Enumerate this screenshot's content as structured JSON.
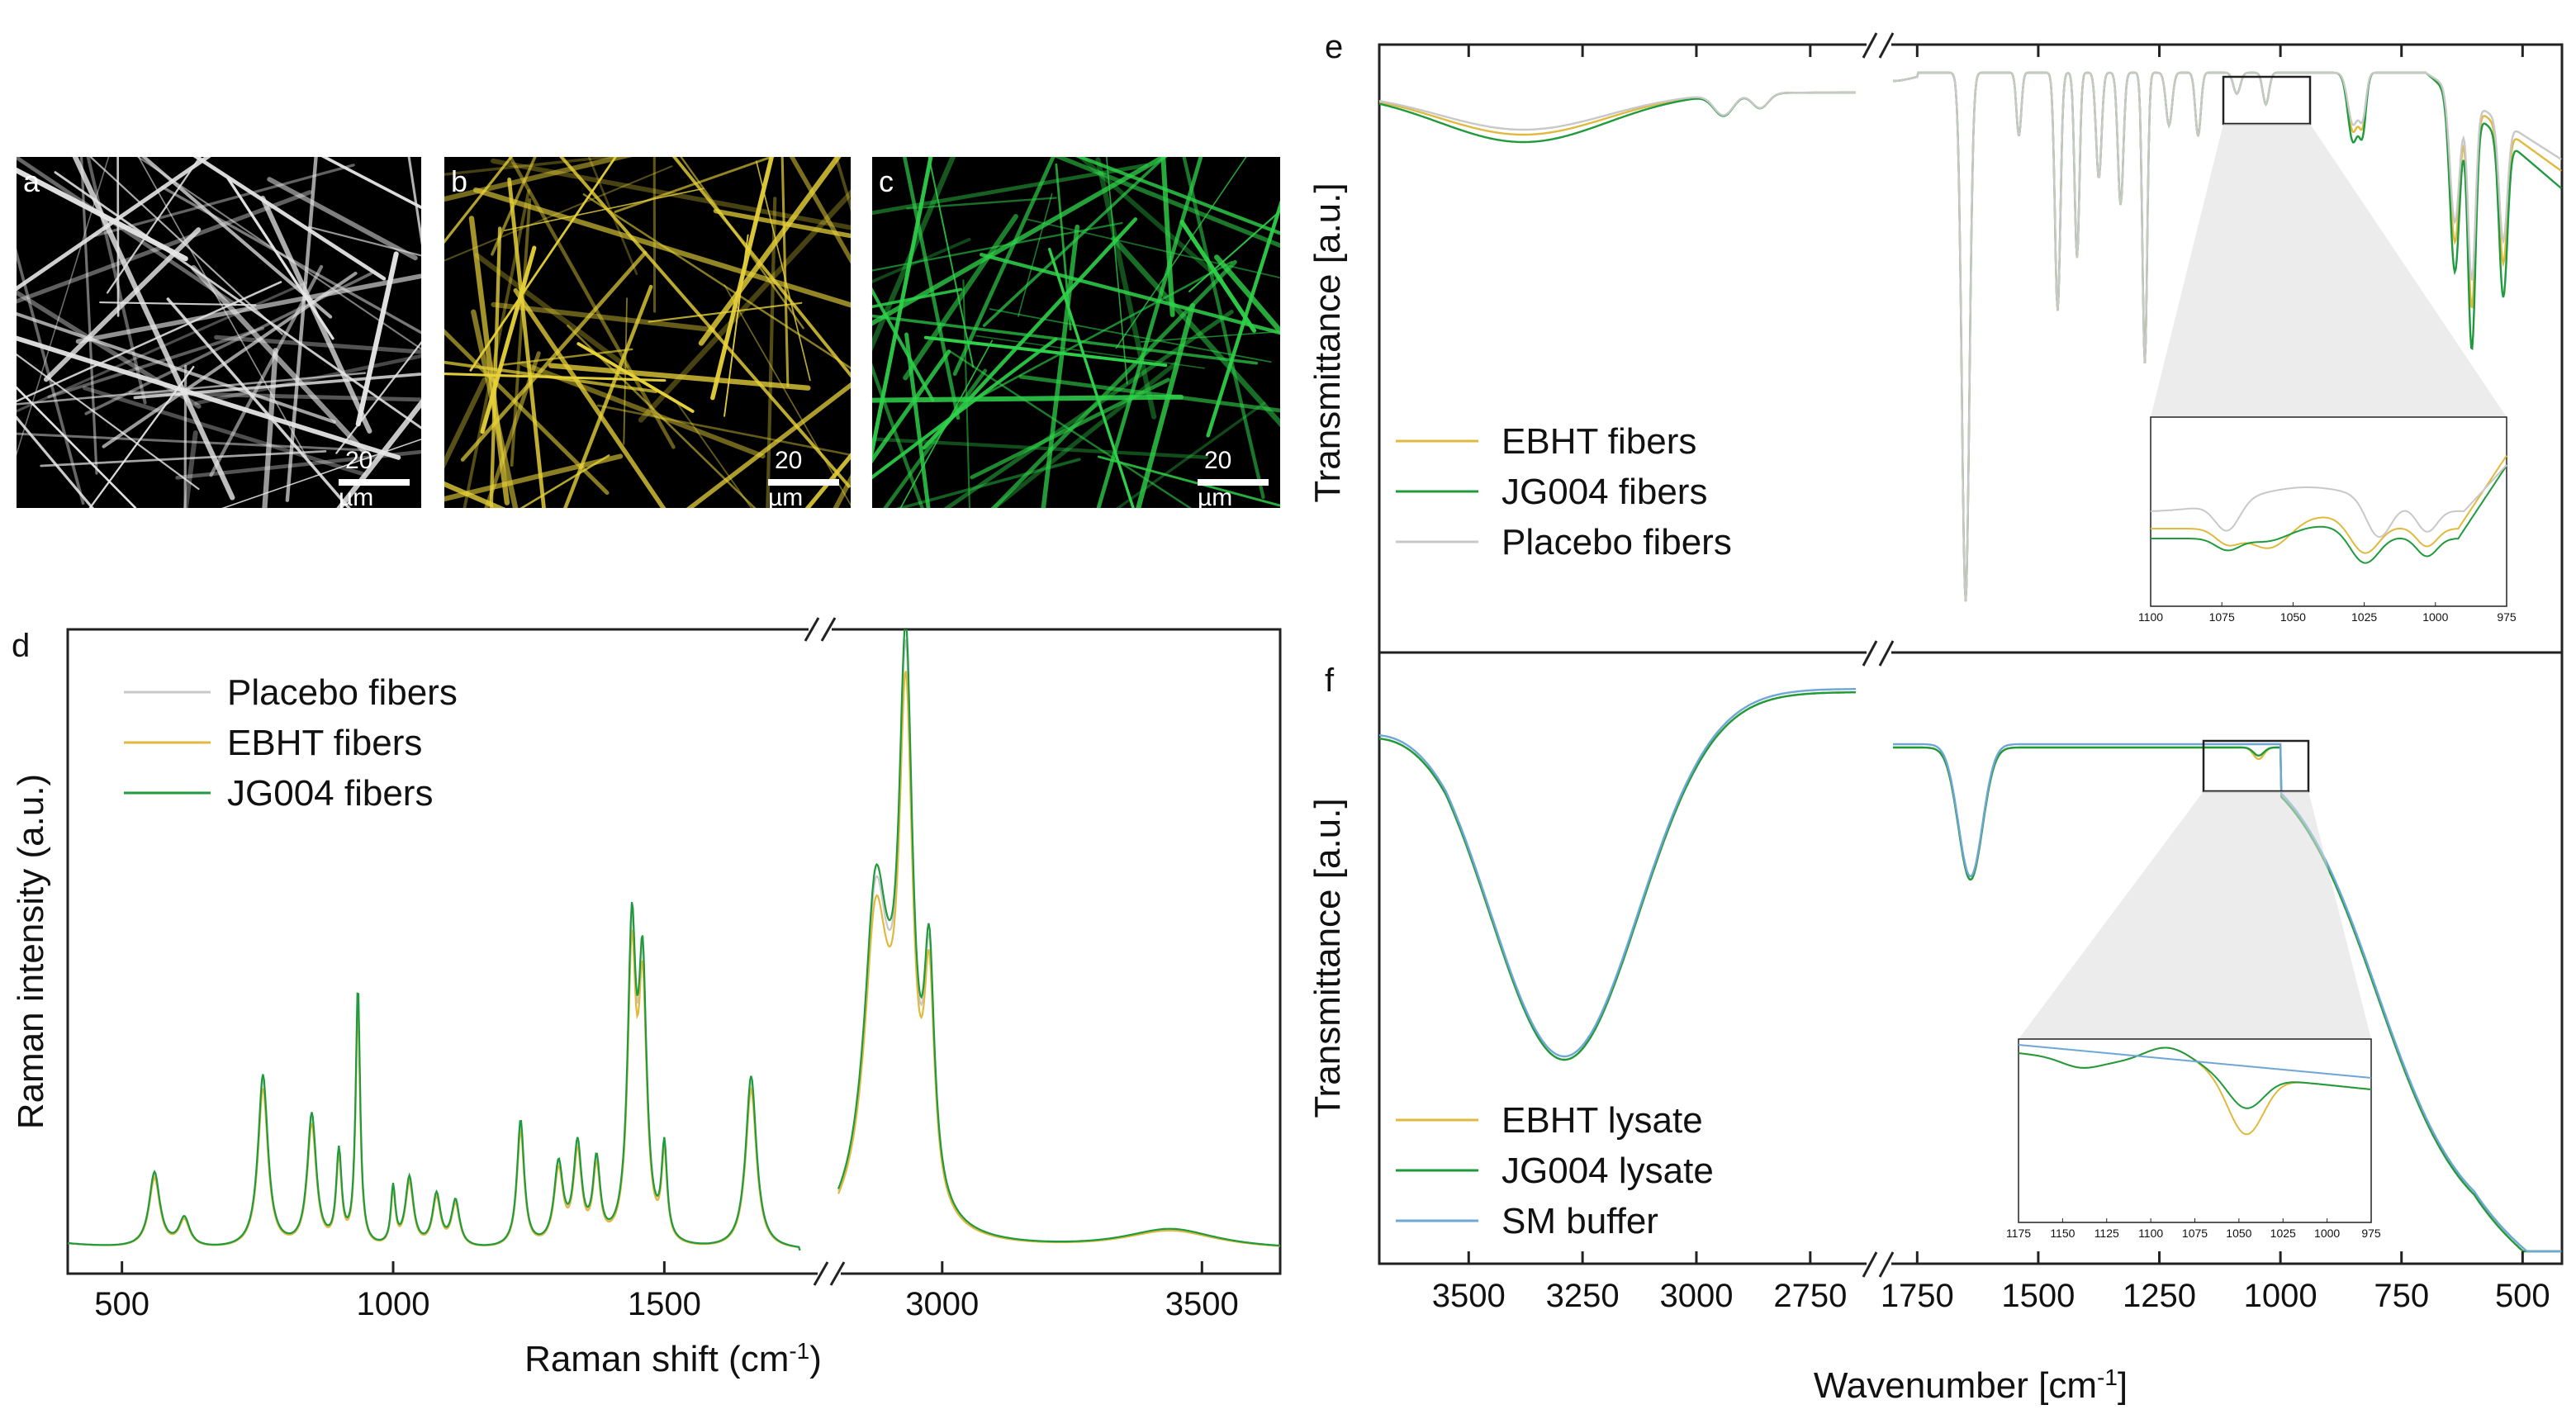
{
  "colors": {
    "placebo": "#c8c8c8",
    "ebht": "#e0b93e",
    "jg004": "#1f9a3c",
    "sm_buffer": "#6ea6d6",
    "micrograph_a": "#e6e6e6",
    "micrograph_b": "#e8d23a",
    "micrograph_c": "#2fd24a"
  },
  "micrographs": [
    {
      "letter": "a",
      "scale_value": "20",
      "scale_unit": "µm",
      "color_key": "micrograph_a"
    },
    {
      "letter": "b",
      "scale_value": "20",
      "scale_unit": "µm",
      "color_key": "micrograph_b"
    },
    {
      "letter": "c",
      "scale_value": "20",
      "scale_unit": "µm",
      "color_key": "micrograph_c"
    }
  ],
  "chart_data": [
    {
      "id": "d",
      "type": "line",
      "panel_letter": "d",
      "xlabel": "Raman shift (cm-1)",
      "xlabel_main": "Raman shift (cm",
      "xlabel_sup": "-1",
      "xlabel_end": ")",
      "ylabel": "Raman intensity (a.u.)",
      "xlim": [
        400,
        3650
      ],
      "axis_break": [
        1750,
        2800
      ],
      "xticks": [
        500,
        1000,
        1500,
        3000,
        3500
      ],
      "legend_position": "top-left",
      "legend": [
        "Placebo fibers",
        "EBHT fibers",
        "JG004 fibers"
      ],
      "series": [
        {
          "name": "Placebo fibers",
          "color_key": "placebo"
        },
        {
          "name": "EBHT fibers",
          "color_key": "ebht"
        },
        {
          "name": "JG004 fibers",
          "color_key": "jg004"
        }
      ],
      "peaks_cm1": [
        560,
        760,
        850,
        900,
        935,
        1000,
        1030,
        1080,
        1115,
        1235,
        1305,
        1340,
        1375,
        1440,
        1460,
        1500,
        1660,
        2930,
        2975,
        3440
      ]
    },
    {
      "id": "e",
      "type": "line",
      "panel_letter": "e",
      "ylabel": "Transmittance [a.u.]",
      "xlim_segment_left": [
        3700,
        2650
      ],
      "xlim_segment_right": [
        1800,
        420
      ],
      "axis_break": [
        2650,
        1800
      ],
      "legend_position": "bottom-left",
      "legend": [
        "EBHT fibers",
        "JG004 fibers",
        "Placebo fibers"
      ],
      "series": [
        {
          "name": "EBHT fibers",
          "color_key": "ebht"
        },
        {
          "name": "JG004 fibers",
          "color_key": "jg004"
        },
        {
          "name": "Placebo fibers",
          "color_key": "placebo"
        }
      ],
      "inset": {
        "xlim": [
          1100,
          975
        ],
        "xticks": [
          "1100",
          "1075",
          "1050",
          "1025",
          "1000",
          "975"
        ],
        "position": "bottom-right"
      }
    },
    {
      "id": "f",
      "type": "line",
      "panel_letter": "f",
      "xlabel": "Wavenumber [cm-1]",
      "xlabel_main": "Wavenumber [cm",
      "xlabel_sup": "-1",
      "xlabel_end": "]",
      "ylabel": "Transmittance [a.u.]",
      "xlim_segment_left": [
        3700,
        2650
      ],
      "xlim_segment_right": [
        1800,
        420
      ],
      "axis_break": [
        2650,
        1800
      ],
      "xticks_left": [
        "3500",
        "3250",
        "3000",
        "2750"
      ],
      "xticks_right": [
        "1750",
        "1500",
        "1250",
        "1000",
        "750",
        "500"
      ],
      "legend_position": "bottom-left",
      "legend": [
        "EBHT lysate",
        "JG004 lysate",
        "SM buffer"
      ],
      "series": [
        {
          "name": "EBHT lysate",
          "color_key": "ebht"
        },
        {
          "name": "JG004 lysate",
          "color_key": "jg004"
        },
        {
          "name": "SM buffer",
          "color_key": "sm_buffer"
        }
      ],
      "inset": {
        "xlim": [
          1175,
          975
        ],
        "xticks": [
          "1175",
          "1150",
          "1125",
          "1100",
          "1075",
          "1050",
          "1025",
          "1000",
          "975"
        ],
        "position": "bottom-right"
      }
    }
  ]
}
